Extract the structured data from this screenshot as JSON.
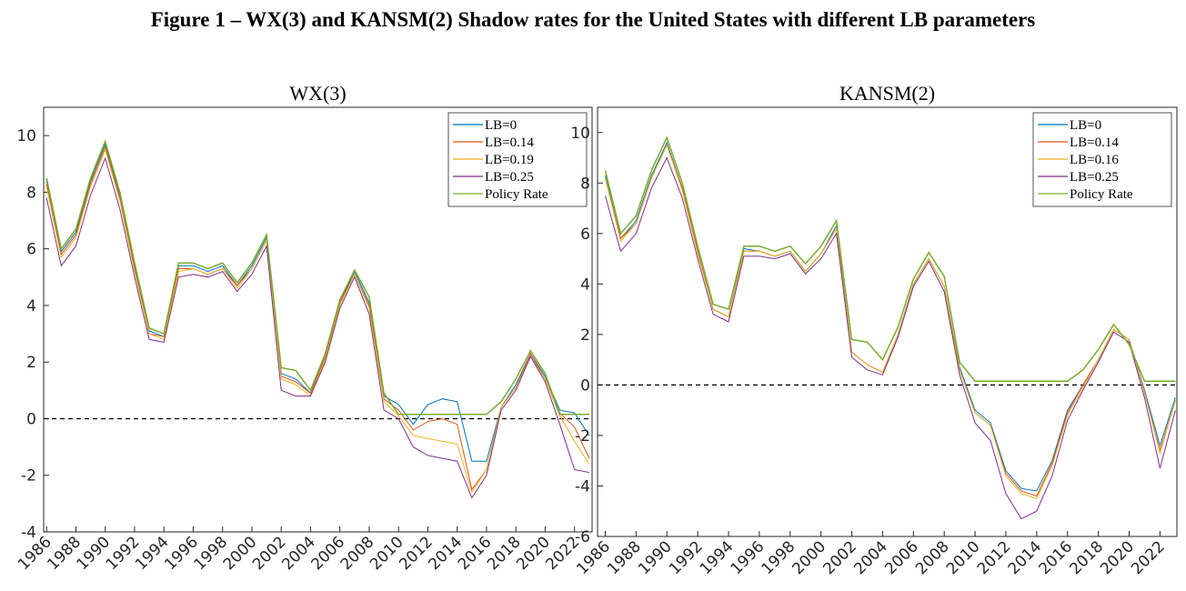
{
  "title": "Figure 1 – WX(3) and KANSM(2) Shadow rates for the United States with different LB parameters",
  "chart_data": [
    {
      "type": "line",
      "title": "WX(3)",
      "x": [
        1986,
        1987,
        1988,
        1989,
        1990,
        1991,
        1992,
        1993,
        1994,
        1995,
        1996,
        1997,
        1998,
        1999,
        2000,
        2001,
        2002,
        2003,
        2004,
        2005,
        2006,
        2007,
        2008,
        2009,
        2010,
        2011,
        2012,
        2013,
        2014,
        2015,
        2016,
        2017,
        2018,
        2019,
        2020,
        2021,
        2022,
        2023
      ],
      "xlim": [
        1985.8,
        2023.2
      ],
      "xticks": [
        1986,
        1988,
        1990,
        1992,
        1994,
        1996,
        1998,
        2000,
        2002,
        2004,
        2006,
        2008,
        2010,
        2012,
        2014,
        2016,
        2018,
        2020,
        2022
      ],
      "ylim": [
        -4,
        11
      ],
      "yticks": [
        -4,
        -2,
        0,
        2,
        4,
        6,
        8,
        10
      ],
      "hline": 0,
      "legend": "upper right",
      "series": [
        {
          "name": "LB=0",
          "color": "#0072BD",
          "values": [
            8.4,
            5.9,
            6.6,
            8.4,
            9.7,
            7.9,
            5.4,
            3.1,
            2.9,
            5.4,
            5.4,
            5.2,
            5.4,
            4.7,
            5.4,
            6.4,
            1.6,
            1.4,
            0.9,
            2.2,
            4.1,
            5.2,
            4.1,
            0.8,
            0.5,
            -0.2,
            0.5,
            0.7,
            0.6,
            -1.5,
            -1.5,
            0.4,
            1.2,
            2.3,
            1.5,
            0.3,
            0.2,
            -0.6
          ]
        },
        {
          "name": "LB=0.14",
          "color": "#D95319",
          "values": [
            8.3,
            5.8,
            6.5,
            8.3,
            9.6,
            7.8,
            5.3,
            3.0,
            2.9,
            5.3,
            5.3,
            5.1,
            5.3,
            4.7,
            5.3,
            6.3,
            1.5,
            1.3,
            0.9,
            2.2,
            4.1,
            5.1,
            4.0,
            0.7,
            0.3,
            -0.4,
            -0.1,
            0.0,
            -0.2,
            -2.5,
            -1.8,
            0.4,
            1.1,
            2.3,
            1.4,
            0.2,
            -0.3,
            -1.4
          ]
        },
        {
          "name": "LB=0.19",
          "color": "#EDB120",
          "values": [
            8.2,
            5.7,
            6.4,
            8.2,
            9.5,
            7.7,
            5.2,
            3.0,
            2.8,
            5.2,
            5.3,
            5.1,
            5.3,
            4.6,
            5.3,
            6.3,
            1.4,
            1.2,
            0.8,
            2.1,
            4.0,
            5.1,
            3.9,
            0.6,
            0.1,
            -0.6,
            -0.7,
            -0.8,
            -0.9,
            -2.6,
            -1.8,
            0.4,
            1.1,
            2.2,
            1.4,
            0.1,
            -0.8,
            -1.6
          ]
        },
        {
          "name": "LB=0.25",
          "color": "#7E2F8E",
          "values": [
            7.8,
            5.4,
            6.1,
            7.9,
            9.2,
            7.4,
            5.0,
            2.8,
            2.7,
            5.0,
            5.1,
            5.0,
            5.2,
            4.5,
            5.1,
            6.1,
            1.0,
            0.8,
            0.8,
            2.0,
            3.9,
            5.0,
            3.7,
            0.3,
            0.0,
            -1.0,
            -1.3,
            -1.4,
            -1.5,
            -2.8,
            -2.0,
            0.3,
            1.0,
            2.2,
            1.3,
            -0.2,
            -1.8,
            -1.9
          ]
        },
        {
          "name": "Policy Rate",
          "color": "#77AC30",
          "values": [
            8.5,
            6.0,
            6.7,
            8.5,
            9.8,
            8.0,
            5.5,
            3.2,
            3.0,
            5.5,
            5.5,
            5.3,
            5.5,
            4.8,
            5.5,
            6.5,
            1.8,
            1.7,
            1.0,
            2.3,
            4.2,
            5.25,
            4.3,
            0.9,
            0.15,
            0.15,
            0.15,
            0.15,
            0.15,
            0.15,
            0.15,
            0.6,
            1.4,
            2.4,
            1.6,
            0.15,
            0.15,
            0.15
          ]
        }
      ]
    },
    {
      "type": "line",
      "title": "KANSM(2)",
      "x": [
        1986,
        1987,
        1988,
        1989,
        1990,
        1991,
        1992,
        1993,
        1994,
        1995,
        1996,
        1997,
        1998,
        1999,
        2000,
        2001,
        2002,
        2003,
        2004,
        2005,
        2006,
        2007,
        2008,
        2009,
        2010,
        2011,
        2012,
        2013,
        2014,
        2015,
        2016,
        2017,
        2018,
        2019,
        2020,
        2021,
        2022,
        2023
      ],
      "xlim": [
        1985.5,
        2023.1
      ],
      "xticks": [
        1986,
        1988,
        1990,
        1992,
        1994,
        1996,
        1998,
        2000,
        2002,
        2004,
        2006,
        2008,
        2010,
        2012,
        2014,
        2016,
        2018,
        2020,
        2022
      ],
      "ylim": [
        -6,
        11
      ],
      "yticks": [
        -6,
        -4,
        -2,
        0,
        2,
        4,
        6,
        8,
        10
      ],
      "hline": 0,
      "legend": "upper right",
      "series": [
        {
          "name": "LB=0",
          "color": "#0072BD",
          "values": [
            8.3,
            5.8,
            6.5,
            8.3,
            9.6,
            7.8,
            5.3,
            3.0,
            2.7,
            5.4,
            5.3,
            5.1,
            5.3,
            4.5,
            5.2,
            6.3,
            1.3,
            0.8,
            0.5,
            2.0,
            4.0,
            5.0,
            3.9,
            0.7,
            -1.0,
            -1.5,
            -3.4,
            -4.1,
            -4.2,
            -3.0,
            -1.0,
            0.0,
            1.0,
            2.2,
            1.8,
            -0.2,
            -2.4,
            -0.5
          ]
        },
        {
          "name": "LB=0.14",
          "color": "#D95319",
          "values": [
            8.2,
            5.8,
            6.4,
            8.2,
            9.5,
            7.8,
            5.3,
            3.0,
            2.7,
            5.3,
            5.3,
            5.1,
            5.3,
            4.5,
            5.2,
            6.2,
            1.3,
            0.8,
            0.5,
            2.0,
            4.0,
            5.0,
            3.9,
            0.6,
            -1.1,
            -1.6,
            -3.5,
            -4.2,
            -4.4,
            -3.1,
            -1.1,
            0.0,
            1.0,
            2.2,
            1.8,
            -0.3,
            -2.6,
            -0.6
          ]
        },
        {
          "name": "LB=0.16",
          "color": "#EDB120",
          "values": [
            8.2,
            5.7,
            6.4,
            8.2,
            9.5,
            7.7,
            5.2,
            3.0,
            2.7,
            5.3,
            5.3,
            5.1,
            5.3,
            4.5,
            5.2,
            6.2,
            1.3,
            0.8,
            0.5,
            2.0,
            4.0,
            5.0,
            3.9,
            0.6,
            -1.1,
            -1.6,
            -3.6,
            -4.3,
            -4.5,
            -3.2,
            -1.2,
            -0.1,
            1.0,
            2.2,
            1.8,
            -0.3,
            -2.7,
            -0.6
          ]
        },
        {
          "name": "LB=0.25",
          "color": "#7E2F8E",
          "values": [
            7.5,
            5.3,
            6.0,
            7.8,
            9.0,
            7.4,
            5.0,
            2.8,
            2.5,
            5.1,
            5.1,
            5.0,
            5.2,
            4.4,
            5.0,
            6.0,
            1.1,
            0.6,
            0.4,
            1.9,
            3.9,
            4.9,
            3.7,
            0.4,
            -1.5,
            -2.2,
            -4.3,
            -5.3,
            -5.0,
            -3.6,
            -1.4,
            -0.2,
            0.9,
            2.1,
            1.7,
            -0.5,
            -3.3,
            -1.0
          ]
        },
        {
          "name": "Policy Rate",
          "color": "#77AC30",
          "values": [
            8.5,
            6.0,
            6.7,
            8.5,
            9.8,
            8.0,
            5.5,
            3.2,
            3.0,
            5.5,
            5.5,
            5.3,
            5.5,
            4.8,
            5.5,
            6.5,
            1.8,
            1.7,
            1.0,
            2.3,
            4.2,
            5.25,
            4.3,
            0.9,
            0.15,
            0.15,
            0.15,
            0.15,
            0.15,
            0.15,
            0.15,
            0.6,
            1.4,
            2.4,
            1.6,
            0.15,
            0.15,
            0.15
          ]
        }
      ]
    }
  ]
}
